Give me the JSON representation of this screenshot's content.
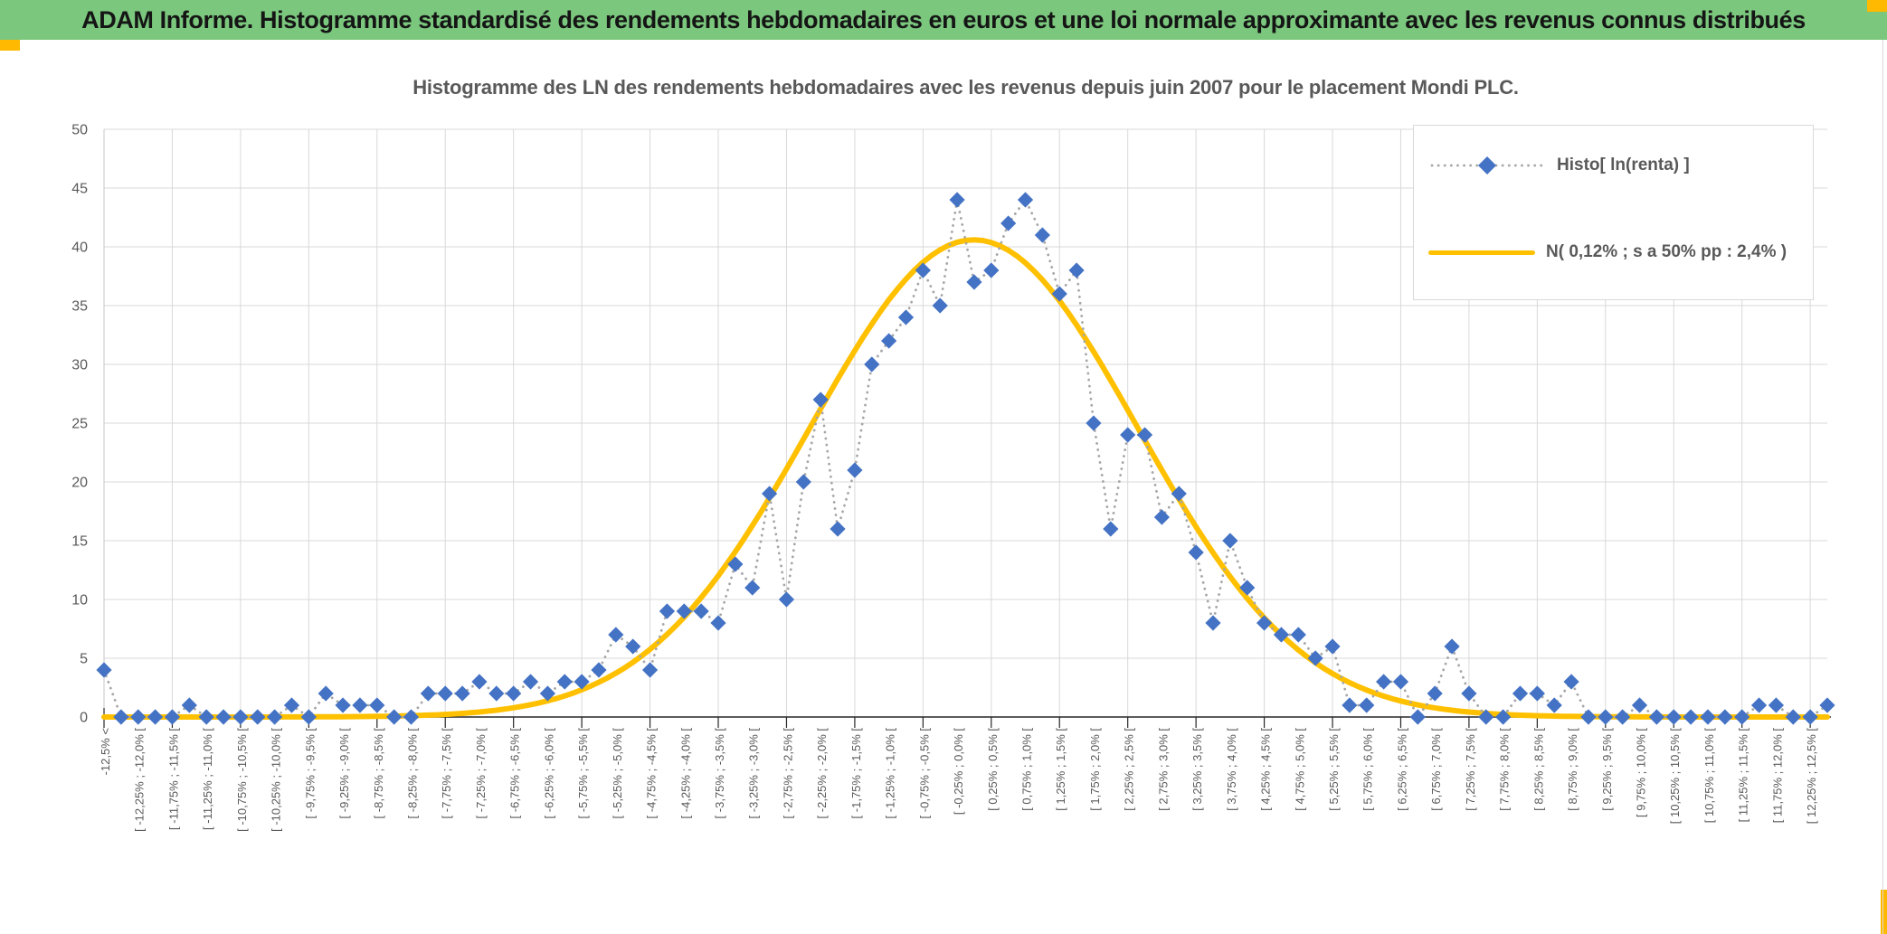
{
  "banner": {
    "text": "ADAM Informe. Histogramme standardisé des rendements hebdomadaires en euros et une loi normale approximante avec les revenus connus distribués"
  },
  "colors": {
    "banner_bg": "#7AC77D",
    "banner_text": "#151515",
    "accent_yellow": "#FFB900",
    "histogram_blue": "#4472C4",
    "curve_gold": "#FFC000",
    "dotted_grey": "#A6A6A6",
    "grid": "#D9D9D9",
    "axis": "#262626",
    "text": "#595959",
    "legend_border": "#D9D9D9"
  },
  "chart_data": {
    "type": "line",
    "title": "Histogramme des LN des rendements hebdomadaires avec les revenus depuis juin 2007 pour le placement Mondi PLC.",
    "ylim": [
      0,
      50
    ],
    "y_step": 5,
    "grid": true,
    "legend_position": "top-right",
    "x_label_interval": 2,
    "x_grid_interval": 4,
    "x_tick_labels": [
      "-12,5% <",
      "[ -12,25% ; -12,0% [",
      "[ -11,75% ; -11,5% [",
      "[ -11,25% ; -11,0% [",
      "[ -10,75% ; -10,5% [",
      "[ -10,25% ; -10,0% [",
      "[ -9,75% ; -9,5% [",
      "[ -9,25% ; -9,0% [",
      "[ -8,75% ; -8,5% [",
      "[ -8,25% ; -8,0% [",
      "[ -7,75% ; -7,5% [",
      "[ -7,25% ; -7,0% [",
      "[ -6,75% ; -6,5% [",
      "[ -6,25% ; -6,0% [",
      "[ -5,75% ; -5,5% [",
      "[ -5,25% ; -5,0% [",
      "[ -4,75% ; -4,5% [",
      "[ -4,25% ; -4,0% [",
      "[ -3,75% ; -3,5% [",
      "[ -3,25% ; -3,0% [",
      "[ -2,75% ; -2,5% [",
      "[ -2,25% ; -2,0% [",
      "[ -1,75% ; -1,5% [",
      "[ -1,25% ; -1,0% [",
      "[ -0,75% ; -0,5% [",
      "[ -0,25% ; 0,0% [",
      "[ 0,25% ; 0,5% [",
      "[ 0,75% ; 1,0% [",
      "[ 1,25% ; 1,5% [",
      "[ 1,75% ; 2,0% [",
      "[ 2,25% ; 2,5% [",
      "[ 2,75% ; 3,0% [",
      "[ 3,25% ; 3,5% [",
      "[ 3,75% ; 4,0% [",
      "[ 4,25% ; 4,5% [",
      "[ 4,75% ; 5,0% [",
      "[ 5,25% ; 5,5% [",
      "[ 5,75% ; 6,0% [",
      "[ 6,25% ; 6,5% [",
      "[ 6,75% ; 7,0% [",
      "[ 7,25% ; 7,5% [",
      "[ 7,75% ; 8,0% [",
      "[ 8,25% ; 8,5% [",
      "[ 8,75% ; 9,0% [",
      "[ 9,25% ; 9,5% [",
      "[ 9,75% ; 10,0% [",
      "[ 10,25% ; 10,5% [",
      "[ 10,75% ; 11,0% [",
      "[ 11,25% ; 11,5% [",
      "[ 11,75% ; 12,0% [",
      "[ 12,25% ; 12,5% ["
    ],
    "series": [
      {
        "name": "Histo[ ln(renta) ]",
        "marker": "diamond",
        "color": "#4472C4",
        "line_color": "#A6A6A6",
        "line_style": "dotted",
        "values": [
          4,
          0,
          0,
          0,
          0,
          1,
          0,
          0,
          0,
          0,
          0,
          1,
          0,
          2,
          1,
          1,
          1,
          0,
          0,
          2,
          2,
          2,
          3,
          2,
          2,
          3,
          2,
          3,
          3,
          4,
          7,
          6,
          4,
          9,
          9,
          9,
          8,
          13,
          11,
          19,
          10,
          20,
          27,
          16,
          21,
          30,
          32,
          34,
          38,
          35,
          44,
          37,
          38,
          42,
          44,
          41,
          36,
          38,
          25,
          16,
          24,
          24,
          17,
          19,
          14,
          8,
          15,
          11,
          8,
          7,
          7,
          5,
          6,
          1,
          1,
          3,
          3,
          0,
          2,
          6,
          2,
          0,
          0,
          2,
          2,
          1,
          3,
          0,
          0,
          0,
          1,
          0,
          0,
          0,
          0,
          0,
          0,
          1,
          1,
          0,
          0,
          1
        ]
      },
      {
        "name": "N( 0,12% ; s a 50% pp : 2,4% )",
        "color": "#FFC000",
        "line_style": "solid",
        "gaussian": {
          "peak": 40.6,
          "mean_pct": 0.12,
          "sigma_pct": 2.4,
          "bin_width_pct": 0.25
        }
      }
    ]
  }
}
